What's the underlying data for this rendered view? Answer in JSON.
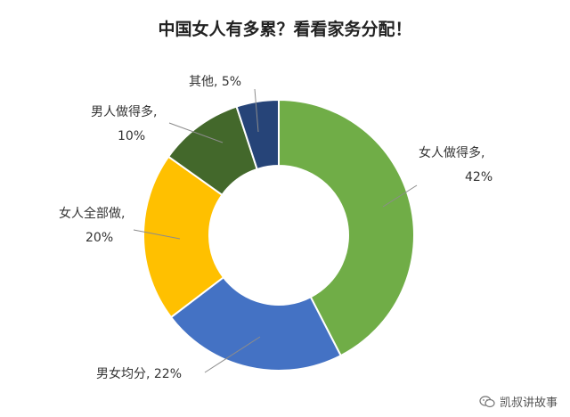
{
  "chart_data": {
    "type": "pie",
    "title": "中国女人有多累？看看家务分配！",
    "categories": [
      "女人做得多",
      "男女均分",
      "女人全部做",
      "男人做得多",
      "其他"
    ],
    "values": [
      42,
      22,
      20,
      10,
      5
    ],
    "value_labels": [
      "42%",
      "22%",
      "20%",
      "10%",
      "5%"
    ],
    "colors": [
      "#70ad47",
      "#4472c4",
      "#ffc000",
      "#43682b",
      "#264478"
    ],
    "donut": true,
    "legend": "none"
  },
  "watermark": {
    "text": "凯叔讲故事",
    "icon": "wechat-icon"
  }
}
